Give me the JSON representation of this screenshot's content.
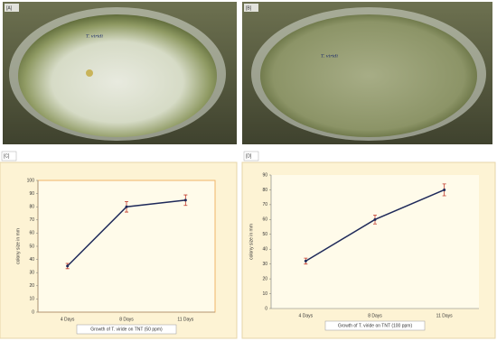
{
  "photos": [
    {
      "label": "[A]",
      "handwriting": "T. viridi"
    },
    {
      "label": "[B]",
      "handwriting": "T. viridi"
    }
  ],
  "chart_data": [
    {
      "type": "line",
      "panel": "[C]",
      "y_label": "colony size in mm",
      "x_label": "Growth of T. viride on TNT (50 ppm)",
      "categories": [
        "4 Days",
        "8 Days",
        "11 Days"
      ],
      "series": [
        {
          "color": "#1f2a5a",
          "error_color": "#c0392b",
          "values": [
            35,
            80,
            85
          ],
          "errors": [
            2,
            4,
            4
          ]
        }
      ],
      "ylim": [
        0,
        100
      ],
      "yticks": [
        0,
        10,
        20,
        30,
        40,
        50,
        60,
        70,
        80,
        90,
        100
      ]
    },
    {
      "type": "line",
      "panel": "[D]",
      "y_label": "colony size in mm",
      "x_label": "Growth of T. viride on TNT (100 ppm)",
      "categories": [
        "4 Days",
        "8 Days",
        "11 Days"
      ],
      "series": [
        {
          "color": "#1f2a5a",
          "error_color": "#c0392b",
          "values": [
            32,
            60,
            80
          ],
          "errors": [
            2,
            3,
            4
          ]
        }
      ],
      "ylim": [
        0,
        90
      ],
      "yticks": [
        0,
        10,
        20,
        30,
        40,
        50,
        60,
        70,
        80,
        90
      ]
    }
  ]
}
